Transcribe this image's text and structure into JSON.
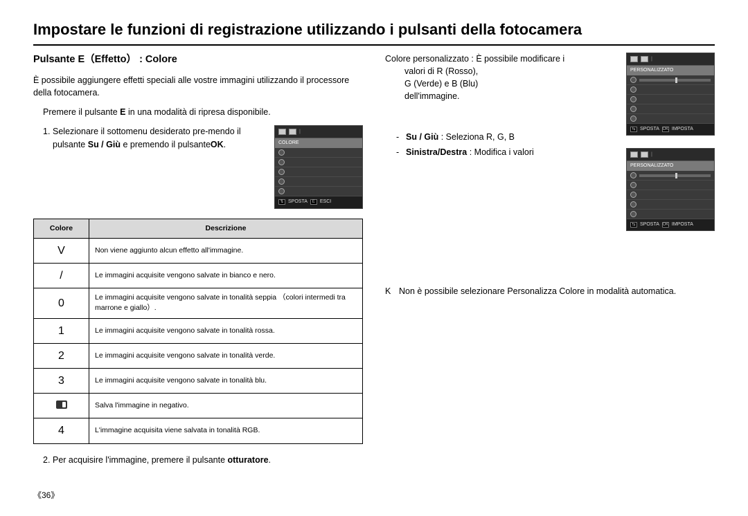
{
  "page": {
    "title": "Impostare le funzioni di registrazione utilizzando i pulsanti della fotocamera",
    "number_label": "《36》"
  },
  "left": {
    "section_title": "Pulsante E（Effetto） :  Colore",
    "intro": "È possibile aggiungere effetti speciali alle vostre immagini utilizzando il processore della fotocamera.",
    "press_e_line": "Premere il pulsante ",
    "press_e_bold": "E",
    "press_e_after": " in una modalità di ripresa disponibile.",
    "step1_num": "1.",
    "step1_text_a": "Selezionare il sottomenu desiderato pre-mendo il pulsante  ",
    "step1_bold1": "Su  /  Giù",
    "step1_text_b": " e premendo il pulsante",
    "step1_bold2": "OK",
    "step1_text_c": ".",
    "step2_num": "2.",
    "step2_text_a": "Per acquisire l'immagine, premere il pulsante ",
    "step2_bold": "otturatore",
    "step2_text_b": "."
  },
  "table": {
    "headers": {
      "col1": "Colore",
      "col2": "Descrizione"
    },
    "rows": [
      {
        "sym": "V",
        "desc": "Non viene aggiunto alcun effetto all'immagine."
      },
      {
        "sym": "/",
        "desc": "Le immagini acquisite vengono salvate in bianco e nero."
      },
      {
        "sym": "0",
        "desc": "Le immagini acquisite vengono salvate in tonalità seppia （colori intermedi tra marrone e giallo）."
      },
      {
        "sym": "1",
        "desc": "Le immagini acquisite vengono salvate in tonalità rossa."
      },
      {
        "sym": "2",
        "desc": "Le immagini acquisite vengono salvate in tonalità verde."
      },
      {
        "sym": "3",
        "desc": "Le immagini acquisite vengono salvate in tonalità blu."
      },
      {
        "sym": "__NEG__",
        "desc": "Salva l'immagine in negativo."
      },
      {
        "sym": "4",
        "desc": "L'immagine acquisita viene salvata in tonalità RGB."
      }
    ]
  },
  "right": {
    "custom_line_a": "Colore personalizzato : È possibile modificare i",
    "custom_line_b": "valori di R (Rosso),",
    "custom_line_c": "G (Verde) e B (Blu)",
    "custom_line_d": "dell'immagine.",
    "bullet1_bold": "Su / Giù",
    "bullet1_rest": " : Seleziona R, G, B",
    "bullet2_bold": "Sinistra/Destra",
    "bullet2_rest": " : Modifica i valori",
    "k_letter": "K",
    "k_text": "Non è possibile selezionare Personalizza Colore in modalità automatica."
  },
  "cam": {
    "left": {
      "label": "COLORE",
      "bottom_move": "SPOSTA",
      "bottom_key": "E",
      "bottom_exit": "ESCI"
    },
    "right": {
      "label": "PERSONALIZZATO",
      "bottom_move": "SPOSTA",
      "bottom_key": "OK",
      "bottom_set": "IMPOSTA"
    }
  },
  "style": {
    "title_fontsize": 22,
    "body_fontsize": 12.5,
    "small_fontsize": 10.5,
    "header_bg": "#d9d9d9",
    "cam_bg": "#3a3a3a",
    "cam_label_bg": "#7a7a7a",
    "page_bg": "#ffffff"
  }
}
